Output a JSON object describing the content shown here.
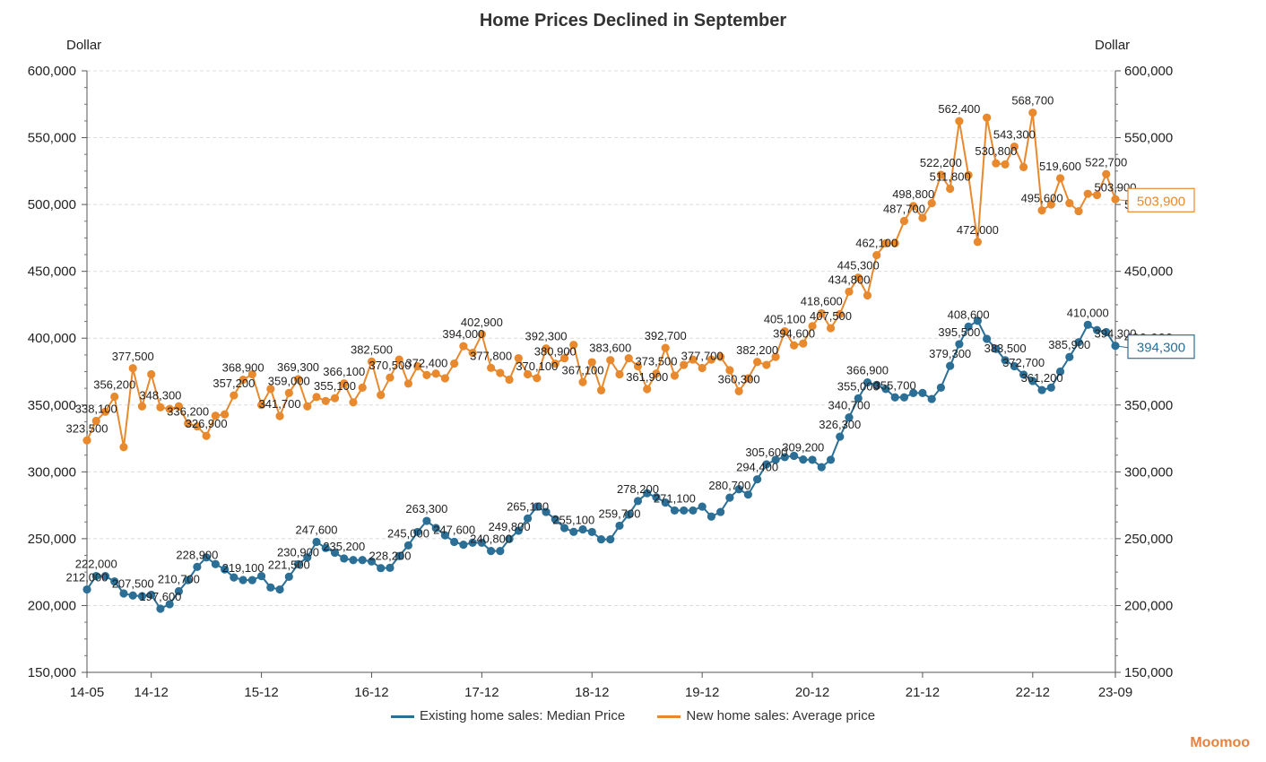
{
  "chart_data": {
    "type": "line",
    "title": "Home Prices Declined in September",
    "y_unit_left": "Dollar",
    "y_unit_right": "Dollar",
    "ylim": [
      150000,
      600000
    ],
    "yticks": [
      "150,000",
      "200,000",
      "250,000",
      "300,000",
      "350,000",
      "400,000",
      "450,000",
      "500,000",
      "550,000",
      "600,000"
    ],
    "x_tick_labels": [
      {
        "i": 0,
        "label": "14-05"
      },
      {
        "i": 7,
        "label": "14-12"
      },
      {
        "i": 19,
        "label": "15-12"
      },
      {
        "i": 31,
        "label": "16-12"
      },
      {
        "i": 43,
        "label": "17-12"
      },
      {
        "i": 55,
        "label": "18-12"
      },
      {
        "i": 67,
        "label": "19-12"
      },
      {
        "i": 79,
        "label": "20-12"
      },
      {
        "i": 91,
        "label": "21-12"
      },
      {
        "i": 103,
        "label": "22-12"
      },
      {
        "i": 112,
        "label": "23-09"
      }
    ],
    "grid": "horizontal-dashed",
    "legend_position": "bottom",
    "series": [
      {
        "name": "Existing home sales: Median Price",
        "color": "#2b6f96",
        "end_label": "394,300",
        "values": [
          212000,
          222000,
          222000,
          218000,
          209000,
          207500,
          207000,
          208000,
          197600,
          201000,
          210700,
          219000,
          228900,
          236000,
          231000,
          227000,
          221000,
          219100,
          219000,
          222000,
          213500,
          212000,
          221500,
          230900,
          236000,
          247600,
          243000,
          239500,
          235200,
          234000,
          234000,
          233000,
          228000,
          228200,
          237000,
          245000,
          255000,
          263300,
          258000,
          252500,
          247600,
          245500,
          247000,
          247000,
          240800,
          240800,
          249800,
          256000,
          265100,
          274000,
          270000,
          264500,
          258000,
          255100,
          257000,
          255000,
          249500,
          249500,
          259700,
          268000,
          278200,
          284000,
          281000,
          277000,
          271100,
          271100,
          271100,
          274000,
          266500,
          270000,
          280700,
          287000,
          283000,
          294400,
          305600,
          309000,
          311000,
          312000,
          309200,
          309000,
          303500,
          309000,
          326300,
          340700,
          355000,
          366900,
          365000,
          362000,
          355700,
          355700,
          359000,
          359000,
          354500,
          363000,
          379300,
          395500,
          408600,
          413000,
          399500,
          392000,
          383500,
          379000,
          372700,
          368000,
          361200,
          363000,
          375000,
          385900,
          397000,
          410000,
          406000,
          404500,
          394300
        ]
      },
      {
        "name": "New home sales: Average price",
        "color": "#e8892d",
        "end_label": "503,900",
        "values": [
          323500,
          338100,
          345000,
          356200,
          318500,
          377500,
          349000,
          373000,
          348300,
          347000,
          349000,
          336200,
          334000,
          326900,
          342000,
          343000,
          357200,
          368900,
          373000,
          350000,
          362000,
          341700,
          359000,
          369300,
          349000,
          356000,
          353000,
          355100,
          366100,
          352000,
          363000,
          382500,
          357500,
          370500,
          384000,
          366000,
          379000,
          372400,
          373500,
          370000,
          381000,
          394000,
          389000,
          402900,
          377800,
          374000,
          369000,
          385000,
          373000,
          370100,
          392300,
          380900,
          385000,
          395000,
          367100,
          382000,
          361000,
          383600,
          373000,
          385000,
          379000,
          361900,
          373500,
          392700,
          372000,
          380000,
          384000,
          377700,
          384000,
          386000,
          376000,
          360300,
          370000,
          382200,
          380000,
          386000,
          405100,
          394600,
          396000,
          409000,
          418600,
          407500,
          418000,
          434800,
          445300,
          432000,
          462100,
          471000,
          471000,
          487700,
          498800,
          490000,
          501000,
          522200,
          511800,
          562400,
          522000,
          472000,
          565000,
          530800,
          530000,
          543300,
          528000,
          568700,
          495600,
          500000,
          519600,
          501000,
          495000,
          508000,
          507000,
          522700,
          503900
        ]
      }
    ],
    "data_labels": [
      {
        "s": 1,
        "i": 0,
        "text": "323,500"
      },
      {
        "s": 1,
        "i": 1,
        "text": "338,100"
      },
      {
        "s": 1,
        "i": 3,
        "text": "356,200"
      },
      {
        "s": 1,
        "i": 5,
        "text": "377,500"
      },
      {
        "s": 1,
        "i": 8,
        "text": "348,300"
      },
      {
        "s": 1,
        "i": 11,
        "text": "336,200"
      },
      {
        "s": 1,
        "i": 13,
        "text": "326,900"
      },
      {
        "s": 1,
        "i": 16,
        "text": "357,200"
      },
      {
        "s": 1,
        "i": 17,
        "text": "368,900"
      },
      {
        "s": 1,
        "i": 21,
        "text": "341,700"
      },
      {
        "s": 1,
        "i": 22,
        "text": "359,000"
      },
      {
        "s": 1,
        "i": 23,
        "text": "369,300"
      },
      {
        "s": 1,
        "i": 27,
        "text": "355,100"
      },
      {
        "s": 1,
        "i": 28,
        "text": "366,100"
      },
      {
        "s": 1,
        "i": 31,
        "text": "382,500"
      },
      {
        "s": 1,
        "i": 33,
        "text": "370,500"
      },
      {
        "s": 1,
        "i": 37,
        "text": "372,400"
      },
      {
        "s": 1,
        "i": 41,
        "text": "394,000"
      },
      {
        "s": 1,
        "i": 43,
        "text": "402,900"
      },
      {
        "s": 1,
        "i": 44,
        "text": "377,800"
      },
      {
        "s": 1,
        "i": 49,
        "text": "370,100"
      },
      {
        "s": 1,
        "i": 50,
        "text": "392,300"
      },
      {
        "s": 1,
        "i": 51,
        "text": "380,900"
      },
      {
        "s": 1,
        "i": 54,
        "text": "367,100"
      },
      {
        "s": 1,
        "i": 57,
        "text": "383,600"
      },
      {
        "s": 1,
        "i": 61,
        "text": "361,900"
      },
      {
        "s": 1,
        "i": 62,
        "text": "373,500"
      },
      {
        "s": 1,
        "i": 63,
        "text": "392,700"
      },
      {
        "s": 1,
        "i": 67,
        "text": "377,700"
      },
      {
        "s": 1,
        "i": 71,
        "text": "360,300"
      },
      {
        "s": 1,
        "i": 73,
        "text": "382,200"
      },
      {
        "s": 1,
        "i": 76,
        "text": "405,100"
      },
      {
        "s": 1,
        "i": 77,
        "text": "394,600"
      },
      {
        "s": 1,
        "i": 80,
        "text": "418,600"
      },
      {
        "s": 1,
        "i": 81,
        "text": "407,500"
      },
      {
        "s": 1,
        "i": 83,
        "text": "434,800"
      },
      {
        "s": 1,
        "i": 84,
        "text": "445,300"
      },
      {
        "s": 1,
        "i": 86,
        "text": "462,100"
      },
      {
        "s": 1,
        "i": 89,
        "text": "487,700"
      },
      {
        "s": 1,
        "i": 90,
        "text": "498,800"
      },
      {
        "s": 1,
        "i": 93,
        "text": "522,200"
      },
      {
        "s": 1,
        "i": 94,
        "text": "511,800"
      },
      {
        "s": 1,
        "i": 95,
        "text": "562,400"
      },
      {
        "s": 1,
        "i": 97,
        "text": "472,000"
      },
      {
        "s": 1,
        "i": 99,
        "text": "530,800"
      },
      {
        "s": 1,
        "i": 101,
        "text": "543,300"
      },
      {
        "s": 1,
        "i": 103,
        "text": "568,700"
      },
      {
        "s": 1,
        "i": 104,
        "text": "495,600"
      },
      {
        "s": 1,
        "i": 106,
        "text": "519,600"
      },
      {
        "s": 1,
        "i": 111,
        "text": "522,700"
      },
      {
        "s": 1,
        "i": 112,
        "text": "503,900"
      },
      {
        "s": 0,
        "i": 0,
        "text": "212,000"
      },
      {
        "s": 0,
        "i": 1,
        "text": "222,000"
      },
      {
        "s": 0,
        "i": 5,
        "text": "207,500"
      },
      {
        "s": 0,
        "i": 8,
        "text": "197,600"
      },
      {
        "s": 0,
        "i": 10,
        "text": "210,700"
      },
      {
        "s": 0,
        "i": 12,
        "text": "228,900"
      },
      {
        "s": 0,
        "i": 17,
        "text": "219,100"
      },
      {
        "s": 0,
        "i": 22,
        "text": "221,500"
      },
      {
        "s": 0,
        "i": 23,
        "text": "230,900"
      },
      {
        "s": 0,
        "i": 25,
        "text": "247,600"
      },
      {
        "s": 0,
        "i": 28,
        "text": "235,200"
      },
      {
        "s": 0,
        "i": 33,
        "text": "228,200"
      },
      {
        "s": 0,
        "i": 35,
        "text": "245,000"
      },
      {
        "s": 0,
        "i": 37,
        "text": "263,300"
      },
      {
        "s": 0,
        "i": 40,
        "text": "247,600"
      },
      {
        "s": 0,
        "i": 44,
        "text": "240,800"
      },
      {
        "s": 0,
        "i": 46,
        "text": "249,800"
      },
      {
        "s": 0,
        "i": 48,
        "text": "265,100"
      },
      {
        "s": 0,
        "i": 53,
        "text": "255,100"
      },
      {
        "s": 0,
        "i": 58,
        "text": "259,700"
      },
      {
        "s": 0,
        "i": 60,
        "text": "278,200"
      },
      {
        "s": 0,
        "i": 64,
        "text": "271,100"
      },
      {
        "s": 0,
        "i": 70,
        "text": "280,700"
      },
      {
        "s": 0,
        "i": 73,
        "text": "294,400"
      },
      {
        "s": 0,
        "i": 74,
        "text": "305,600"
      },
      {
        "s": 0,
        "i": 78,
        "text": "309,200"
      },
      {
        "s": 0,
        "i": 82,
        "text": "326,300"
      },
      {
        "s": 0,
        "i": 83,
        "text": "340,700"
      },
      {
        "s": 0,
        "i": 84,
        "text": "355,000"
      },
      {
        "s": 0,
        "i": 85,
        "text": "366,900"
      },
      {
        "s": 0,
        "i": 88,
        "text": "355,700"
      },
      {
        "s": 0,
        "i": 94,
        "text": "379,300"
      },
      {
        "s": 0,
        "i": 95,
        "text": "395,500"
      },
      {
        "s": 0,
        "i": 96,
        "text": "408,600"
      },
      {
        "s": 0,
        "i": 100,
        "text": "383,500"
      },
      {
        "s": 0,
        "i": 102,
        "text": "372,700"
      },
      {
        "s": 0,
        "i": 104,
        "text": "361,200"
      },
      {
        "s": 0,
        "i": 107,
        "text": "385,900"
      },
      {
        "s": 0,
        "i": 109,
        "text": "410,000"
      },
      {
        "s": 0,
        "i": 112,
        "text": "394,300"
      }
    ]
  },
  "brand": "Moomoo"
}
